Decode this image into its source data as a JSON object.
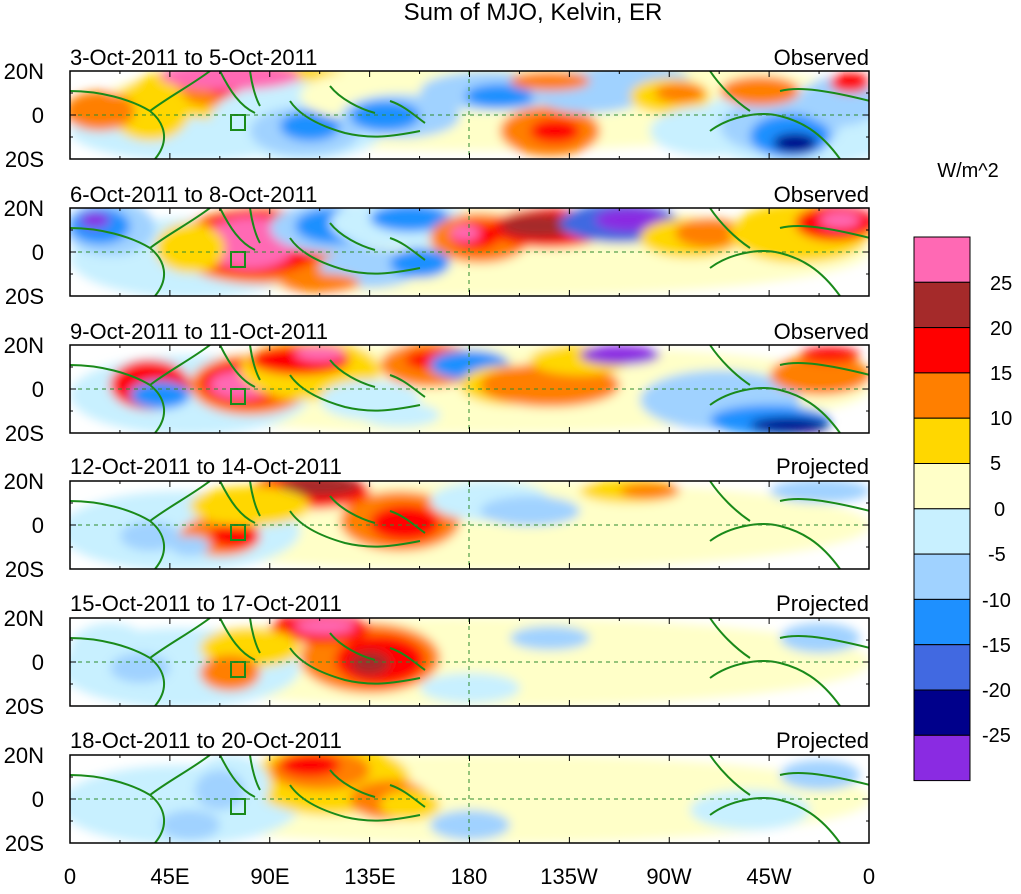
{
  "figure": {
    "title": "Sum of MJO, Kelvin, ER",
    "units_label": "W/m^2",
    "lat_ticks": [
      "20N",
      "0",
      "20S"
    ],
    "lon_ticks": [
      "0",
      "45E",
      "90E",
      "135E",
      "180",
      "135W",
      "90W",
      "45W",
      "0"
    ]
  },
  "panels": [
    {
      "date_range": "3-Oct-2011 to 5-Oct-2011",
      "status": "Observed"
    },
    {
      "date_range": "6-Oct-2011 to 8-Oct-2011",
      "status": "Observed"
    },
    {
      "date_range": "9-Oct-2011 to 11-Oct-2011",
      "status": "Observed"
    },
    {
      "date_range": "12-Oct-2011 to 14-Oct-2011",
      "status": "Projected"
    },
    {
      "date_range": "15-Oct-2011 to 17-Oct-2011",
      "status": "Projected"
    },
    {
      "date_range": "18-Oct-2011 to 20-Oct-2011",
      "status": "Projected"
    }
  ],
  "colorbar": {
    "colors": [
      "#ff69b4",
      "#a52a2a",
      "#ff0000",
      "#ff7f00",
      "#ffd700",
      "#ffffc8",
      "#c8f0ff",
      "#a0d2ff",
      "#1e90ff",
      "#4169e1",
      "#00008b",
      "#8a2be2"
    ],
    "labels": [
      "25",
      "20",
      "15",
      "10",
      "5",
      "0",
      "-5",
      "-10",
      "-15",
      "-20",
      "-25"
    ]
  },
  "colors": {
    "coast": "#1a8a1a",
    "grid": "#2e8b2e"
  }
}
